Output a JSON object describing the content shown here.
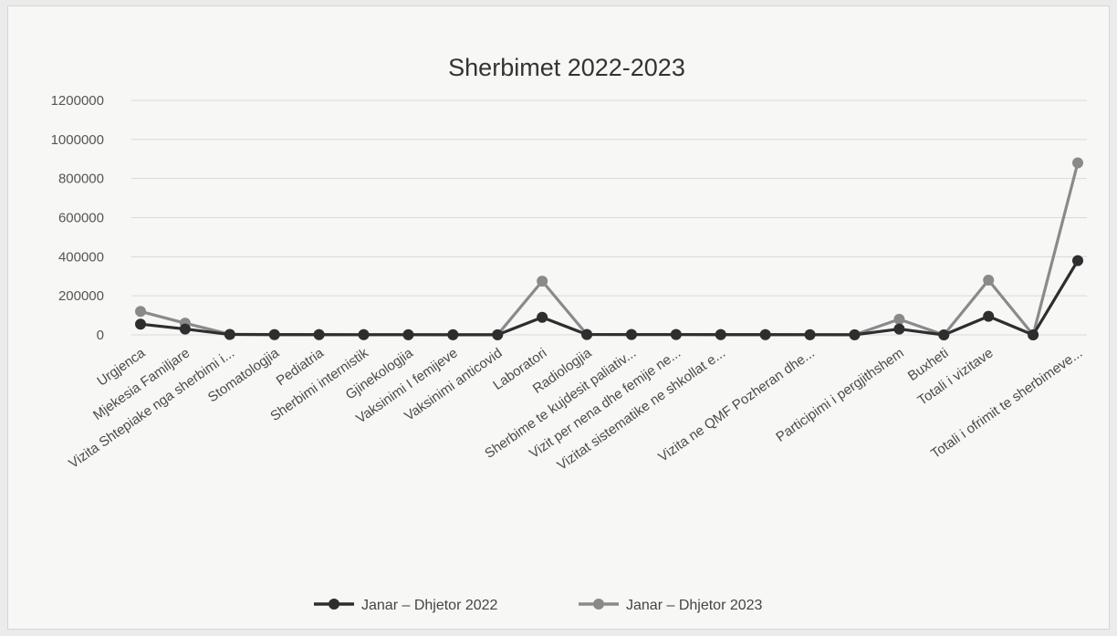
{
  "chart_data": {
    "type": "line",
    "title": "Sherbimet 2022-2023",
    "xlabel": "",
    "ylabel": "",
    "ylim": [
      0,
      1200000
    ],
    "yticks": [
      "0",
      "200000",
      "400000",
      "600000",
      "800000",
      "1000000",
      "1200000"
    ],
    "grid": true,
    "legend_position": "bottom",
    "categories": [
      "Urgjenca",
      "Mjekesia Familjare",
      "Vizita Shtepiake nga sherbimi i...",
      "Stomatologjia",
      "Pediatria",
      "Sherbimi internistik",
      "Gjinekologjia",
      "Vaksinimi I femijeve",
      "Vaksinimi anticovid",
      "Laboratori",
      "Radiologjia",
      "Sherbime te kujdesit paliativ...",
      "Vizit per nena dhe femije ne...",
      "Vizitat sistematike ne shkollat e...",
      "",
      "Vizita ne QMF Pozheran dhe...",
      "",
      "Participimi i pergjithshem",
      "Buxheti",
      "Totali i vizitave",
      "",
      "Totali i ofrimit te sherbimeve..."
    ],
    "series": [
      {
        "name": "Janar – Dhjetor 2022",
        "color": "#2e2e2e",
        "values": [
          55000,
          30000,
          2000,
          1000,
          1000,
          900,
          800,
          700,
          600,
          90000,
          2000,
          1500,
          1500,
          1200,
          1000,
          800,
          600,
          30000,
          100,
          95000,
          100,
          380000
        ]
      },
      {
        "name": "Janar – Dhjetor 2023",
        "color": "#8a8a8a",
        "values": [
          120000,
          60000,
          3000,
          2000,
          1500,
          1200,
          1000,
          900,
          800,
          275000,
          2500,
          2000,
          2000,
          1500,
          1200,
          1000,
          800,
          80000,
          100,
          280000,
          100,
          880000
        ]
      }
    ]
  }
}
